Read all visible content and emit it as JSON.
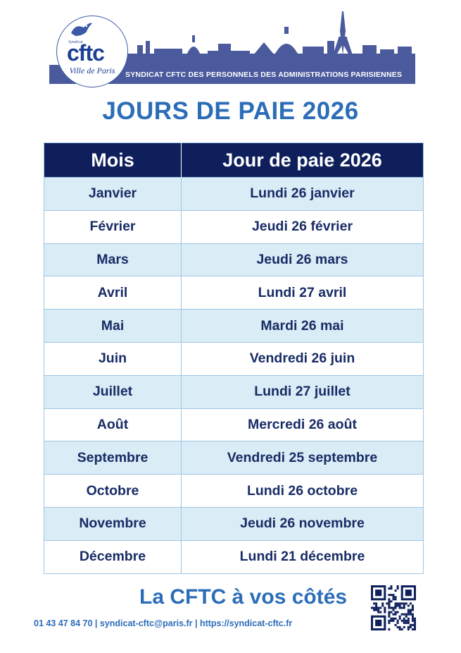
{
  "header": {
    "logo": {
      "small_text": "Syndicat",
      "name": "cftc",
      "city": "Ville de Paris"
    },
    "banner_text": "SYNDICAT CFTC DES PERSONNELS DES ADMINISTRATIONS PARISIENNES",
    "colors": {
      "banner": "#4a5a9c",
      "logo_blue": "#1d3f95"
    }
  },
  "title": "JOURS DE PAIE 2026",
  "table": {
    "headers": [
      "Mois",
      "Jour de paie 2026"
    ],
    "rows": [
      [
        "Janvier",
        "Lundi 26 janvier"
      ],
      [
        "Février",
        "Jeudi 26 février"
      ],
      [
        "Mars",
        "Jeudi 26 mars"
      ],
      [
        "Avril",
        "Lundi 27 avril"
      ],
      [
        "Mai",
        "Mardi 26 mai"
      ],
      [
        "Juin",
        "Vendredi 26 juin"
      ],
      [
        "Juillet",
        "Lundi 27 juillet"
      ],
      [
        "Août",
        "Mercredi 26 août"
      ],
      [
        "Septembre",
        "Vendredi 25 septembre"
      ],
      [
        "Octobre",
        "Lundi 26 octobre"
      ],
      [
        "Novembre",
        "Jeudi 26 novembre"
      ],
      [
        "Décembre",
        "Lundi 21 décembre"
      ]
    ],
    "colors": {
      "header_bg": "#0e1f5c",
      "stripe": "#daecf5",
      "text": "#182c66"
    }
  },
  "footer": {
    "tagline": "La CFTC à vos côtés",
    "contact": "01 43 47 84 70 | syndicat-cftc@paris.fr | https://syndicat-cftc.fr",
    "qr_icon": "qr-code-icon",
    "colors": {
      "accent": "#2c6db8"
    }
  }
}
